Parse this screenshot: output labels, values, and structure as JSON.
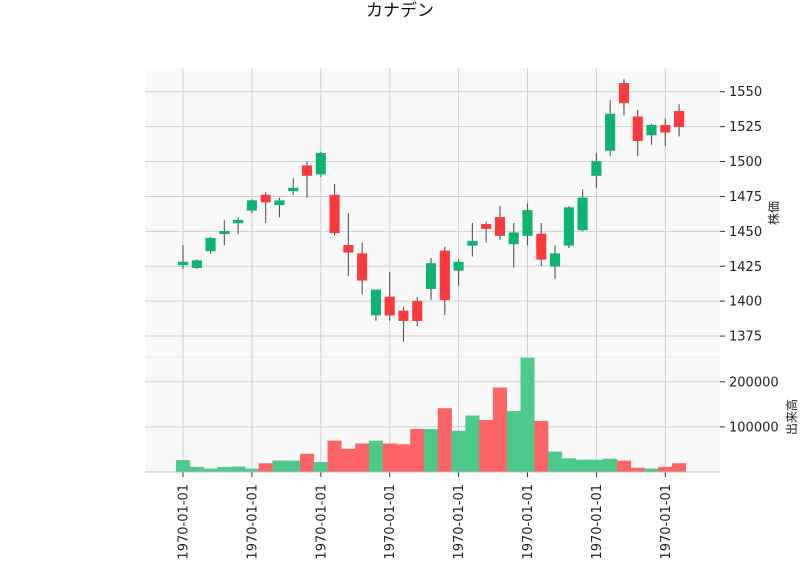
{
  "chart_data": {
    "type": "candlestick",
    "title": "カナデン",
    "price_ylabel": "株価",
    "volume_ylabel": "出来高",
    "x_tick_labels": [
      "1970-01-01",
      "1970-01-01",
      "1970-01-01",
      "1970-01-01",
      "1970-01-01",
      "1970-01-01",
      "1970-01-01",
      "1970-01-01"
    ],
    "x_tick_indices": [
      0,
      5,
      10,
      15,
      20,
      25,
      30,
      35
    ],
    "price_ylim": [
      1360,
      1567
    ],
    "price_ticks": [
      1375,
      1400,
      1425,
      1450,
      1475,
      1500,
      1525,
      1550
    ],
    "volume_ylim": [
      0,
      255000
    ],
    "volume_ticks": [
      100000,
      200000
    ],
    "volume_tick_labels": [
      "100000",
      "200000"
    ],
    "up_color": "#0fb371",
    "down_color": "#fa3a3f",
    "up_volume_color": "#4ec98c",
    "down_volume_color": "#fd6466",
    "grid": true,
    "background": "#f9f9f9",
    "candles": [
      {
        "open": 1426,
        "high": 1440,
        "low": 1423,
        "close": 1428,
        "volume": 26000
      },
      {
        "open": 1424,
        "high": 1430,
        "low": 1423,
        "close": 1429,
        "volume": 11000
      },
      {
        "open": 1436,
        "high": 1446,
        "low": 1434,
        "close": 1445,
        "volume": 7000
      },
      {
        "open": 1449,
        "high": 1458,
        "low": 1440,
        "close": 1450,
        "volume": 11000
      },
      {
        "open": 1456,
        "high": 1460,
        "low": 1448,
        "close": 1458,
        "volume": 12000
      },
      {
        "open": 1465,
        "high": 1473,
        "low": 1463,
        "close": 1472,
        "volume": 7000
      },
      {
        "open": 1476,
        "high": 1478,
        "low": 1456,
        "close": 1471,
        "volume": 19000
      },
      {
        "open": 1469,
        "high": 1474,
        "low": 1460,
        "close": 1472,
        "volume": 25000
      },
      {
        "open": 1479,
        "high": 1488,
        "low": 1476,
        "close": 1481,
        "volume": 25000
      },
      {
        "open": 1497,
        "high": 1500,
        "low": 1474,
        "close": 1490,
        "volume": 40000
      },
      {
        "open": 1491,
        "high": 1507,
        "low": 1489,
        "close": 1506,
        "volume": 22000
      },
      {
        "open": 1476,
        "high": 1484,
        "low": 1447,
        "close": 1449,
        "volume": 69000
      },
      {
        "open": 1440,
        "high": 1463,
        "low": 1418,
        "close": 1435,
        "volume": 51000
      },
      {
        "open": 1434,
        "high": 1442,
        "low": 1405,
        "close": 1415,
        "volume": 63000
      },
      {
        "open": 1390,
        "high": 1408,
        "low": 1386,
        "close": 1408,
        "volume": 69000
      },
      {
        "open": 1403,
        "high": 1421,
        "low": 1386,
        "close": 1390,
        "volume": 63000
      },
      {
        "open": 1393,
        "high": 1396,
        "low": 1371,
        "close": 1386,
        "volume": 61000
      },
      {
        "open": 1400,
        "high": 1403,
        "low": 1382,
        "close": 1386,
        "volume": 95000
      },
      {
        "open": 1409,
        "high": 1431,
        "low": 1401,
        "close": 1427,
        "volume": 95000
      },
      {
        "open": 1436,
        "high": 1439,
        "low": 1390,
        "close": 1401,
        "volume": 141000
      },
      {
        "open": 1422,
        "high": 1430,
        "low": 1411,
        "close": 1428,
        "volume": 91000
      },
      {
        "open": 1440,
        "high": 1456,
        "low": 1432,
        "close": 1443,
        "volume": 125000
      },
      {
        "open": 1455,
        "high": 1457,
        "low": 1442,
        "close": 1452,
        "volume": 115000
      },
      {
        "open": 1460,
        "high": 1468,
        "low": 1444,
        "close": 1447,
        "volume": 187000
      },
      {
        "open": 1441,
        "high": 1456,
        "low": 1424,
        "close": 1449,
        "volume": 135000
      },
      {
        "open": 1447,
        "high": 1470,
        "low": 1440,
        "close": 1465,
        "volume": 253000
      },
      {
        "open": 1448,
        "high": 1456,
        "low": 1425,
        "close": 1430,
        "volume": 113000
      },
      {
        "open": 1425,
        "high": 1440,
        "low": 1416,
        "close": 1434,
        "volume": 45000
      },
      {
        "open": 1440,
        "high": 1468,
        "low": 1438,
        "close": 1467,
        "volume": 30000
      },
      {
        "open": 1451,
        "high": 1480,
        "low": 1450,
        "close": 1474,
        "volume": 27000
      },
      {
        "open": 1490,
        "high": 1506,
        "low": 1481,
        "close": 1500,
        "volume": 27000
      },
      {
        "open": 1508,
        "high": 1544,
        "low": 1504,
        "close": 1534,
        "volume": 29000
      },
      {
        "open": 1556,
        "high": 1559,
        "low": 1533,
        "close": 1542,
        "volume": 25000
      },
      {
        "open": 1532,
        "high": 1537,
        "low": 1504,
        "close": 1515,
        "volume": 9000
      },
      {
        "open": 1519,
        "high": 1527,
        "low": 1512,
        "close": 1526,
        "volume": 7000
      },
      {
        "open": 1526,
        "high": 1531,
        "low": 1511,
        "close": 1521,
        "volume": 11000
      },
      {
        "open": 1536,
        "high": 1541,
        "low": 1518,
        "close": 1525,
        "volume": 19000
      }
    ]
  }
}
